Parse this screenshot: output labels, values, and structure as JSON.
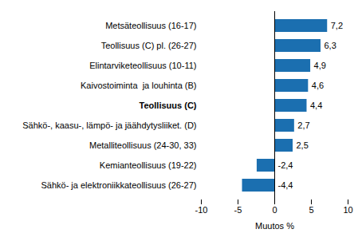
{
  "chart_data": {
    "type": "bar",
    "orientation": "horizontal",
    "categories": [
      "Metsäteollisuus (16-17)",
      "Teollisuus (C) pl. (26-27)",
      "Elintarviketeollisuus (10-11)",
      "Kaivostoiminta  ja louhinta (B)",
      "Teollisuus (C)",
      "Sähkö-, kaasu-, lämpö- ja jäähdytysliiket. (D)",
      "Metalliteollisuus (24-30, 33)",
      "Kemianteollisuus (19-22)",
      "Sähkö- ja elektroniikkateollisuus (26-27)"
    ],
    "values": [
      7.2,
      6.3,
      4.9,
      4.6,
      4.4,
      2.7,
      2.5,
      -2.4,
      -4.4
    ],
    "value_labels": [
      "7,2",
      "6,3",
      "4,9",
      "4,6",
      "4,4",
      "2,7",
      "2,5",
      "-2,4",
      "-4,4"
    ],
    "data_labels": true,
    "color": "#1b6fb0",
    "xlabel": "Muutos %",
    "xlim": [
      -10,
      10
    ],
    "xticks": [
      -10,
      -5,
      0,
      5,
      10
    ],
    "grid": false
  }
}
